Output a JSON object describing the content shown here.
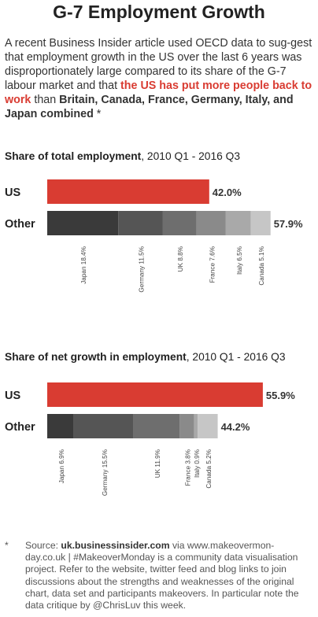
{
  "title": "G-7 Employment Growth",
  "intro": {
    "part1": "A recent Business Insider article used OECD data to sug-gest that employment growth in the US over the last 6 years was disproportionately large compared to its share of the G-7 labour market and that ",
    "highlight": "the US has put more people back to work",
    "part2": " than ",
    "countries": "Britain, Canada, France, Germany, Italy, and Japan combined",
    "part3": " *"
  },
  "colors": {
    "us": "#d93c32",
    "shades": [
      "#3a3a3a",
      "#555555",
      "#6e6e6e",
      "#8a8a8a",
      "#a9a9a9",
      "#c6c6c6"
    ]
  },
  "chart_data": [
    {
      "type": "bar",
      "title_bold": "Share of total employment",
      "title_rest": ", 2010 Q1 - 2016 Q3",
      "categories": [
        "US",
        "Other"
      ],
      "values": [
        42.0,
        57.9
      ],
      "value_labels": [
        "42.0%",
        "57.9%"
      ],
      "other_breakdown": [
        {
          "name": "Japan",
          "value": 18.4,
          "label": "Japan 18.4%"
        },
        {
          "name": "Germany",
          "value": 11.5,
          "label": "Germany 11.5%"
        },
        {
          "name": "UK",
          "value": 8.8,
          "label": "UK 8.8%"
        },
        {
          "name": "France",
          "value": 7.6,
          "label": "France 7.6%"
        },
        {
          "name": "Italy",
          "value": 6.5,
          "label": "Italy 6.5%"
        },
        {
          "name": "Canada",
          "value": 5.1,
          "label": "Canada 5.1%"
        }
      ]
    },
    {
      "type": "bar",
      "title_bold": "Share of net growth in employment",
      "title_rest": ", 2010 Q1 - 2016 Q3",
      "categories": [
        "US",
        "Other"
      ],
      "values": [
        55.9,
        44.2
      ],
      "value_labels": [
        "55.9%",
        "44.2%"
      ],
      "other_breakdown": [
        {
          "name": "Japan",
          "value": 6.9,
          "label": "Japan 6.9%"
        },
        {
          "name": "Germany",
          "value": 15.5,
          "label": "Germany 15.5%"
        },
        {
          "name": "UK",
          "value": 11.9,
          "label": "UK 11.9%"
        },
        {
          "name": "France",
          "value": 3.8,
          "label": "France 3.8%"
        },
        {
          "name": "Italy",
          "value": 0.9,
          "label": "Italy 0.9%"
        },
        {
          "name": "Canada",
          "value": 5.2,
          "label": "Canada 5.2%"
        }
      ]
    }
  ],
  "footnote": {
    "star": "*",
    "source_prefix": "Source: ",
    "source": "uk.businessinsider.com",
    "body": " via www.makeovermon-day.co.uk | #MakeoverMonday is a community data visualisation project. Refer to the website, twitter feed and blog links to join discussions about the strengths and weaknesses of the original chart, data set and participants makeovers. In particular note the data critique by @ChrisLuv this week."
  }
}
